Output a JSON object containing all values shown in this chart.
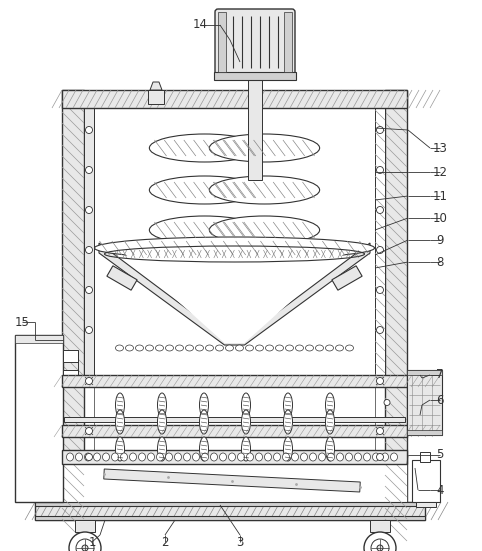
{
  "bg_color": "#ffffff",
  "lc": "#333333",
  "figsize": [
    4.82,
    5.51
  ],
  "dpi": 100,
  "labels": [
    "1",
    "2",
    "3",
    "4",
    "5",
    "6",
    "7",
    "8",
    "9",
    "10",
    "11",
    "12",
    "13",
    "14",
    "15"
  ]
}
